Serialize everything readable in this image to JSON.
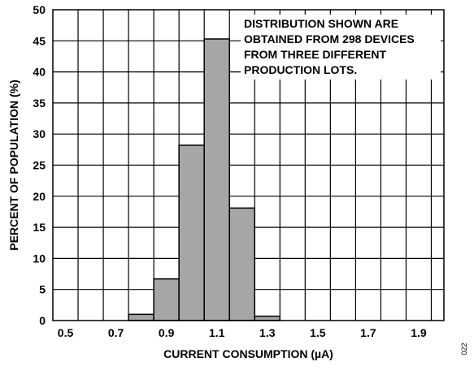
{
  "chart_data": {
    "type": "bar",
    "title": "",
    "xlabel": "CURRENT CONSUMPTION (µA)",
    "ylabel": "PERCENT OF POPULATION (%)",
    "xlim": [
      0.45,
      2.0
    ],
    "ylim": [
      0,
      50
    ],
    "x_ticks": [
      0.5,
      0.7,
      0.9,
      1.1,
      1.3,
      1.5,
      1.7,
      1.9
    ],
    "x_tick_labels": [
      "0.5",
      "0.7",
      "0.9",
      "1.1",
      "1.3",
      "1.5",
      "1.7",
      "1.9"
    ],
    "x_grid_step": 0.1,
    "y_ticks": [
      0,
      5,
      10,
      15,
      20,
      25,
      30,
      35,
      40,
      45,
      50
    ],
    "y_tick_labels": [
      "0",
      "5",
      "10",
      "15",
      "20",
      "25",
      "30",
      "35",
      "40",
      "45",
      "50"
    ],
    "grid": true,
    "bin_width": 0.1,
    "bins": [
      {
        "x_start": 0.75,
        "value": 1.0
      },
      {
        "x_start": 0.85,
        "value": 6.7
      },
      {
        "x_start": 0.95,
        "value": 28.2
      },
      {
        "x_start": 1.05,
        "value": 45.3
      },
      {
        "x_start": 1.15,
        "value": 18.1
      },
      {
        "x_start": 1.25,
        "value": 0.7
      }
    ],
    "bar_color": "#a6a6a6",
    "annotation": [
      "DISTRIBUTION SHOWN ARE",
      "OBTAINED FROM 298 DEVICES",
      "FROM THREE DIFFERENT",
      "PRODUCTION LOTS."
    ],
    "annotation_position": "top-right",
    "figure_id": "022"
  }
}
